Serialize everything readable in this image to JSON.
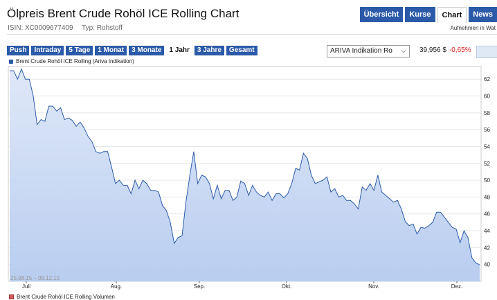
{
  "header": {
    "title": "Ölpreis Brent Crude Rohöl ICE Rolling Chart",
    "isin": "ISIN: XC0009677409",
    "type": "Typ: Rohstoff",
    "watchlist": "Aufnehmen in Wat"
  },
  "nav": {
    "tabs": [
      "Übersicht",
      "Kurse",
      "Chart",
      "News"
    ],
    "active": "Chart"
  },
  "ranges": {
    "items": [
      "Push",
      "Intraday",
      "5 Tage",
      "1 Monat",
      "3 Monate",
      "1 Jahr",
      "3 Jahre",
      "Gesamt"
    ],
    "active": "1 Jahr"
  },
  "source_select": {
    "value": "ARIVA Indikation Ro"
  },
  "quote": {
    "price": "39,956 $",
    "change": "-0,65%"
  },
  "colors": {
    "accent": "#2b5aa8",
    "line": "#2b5aa8",
    "fill": "#b9cdf0",
    "negative": "#d21c1c",
    "volume": "#d35d5d"
  },
  "chart_data": {
    "type": "area",
    "series_label": "Brent Crude Rohöl ICE Rolling (Ariva Indikation)",
    "volume_label": "Brent Crude Rohöl ICE Rolling Volumen",
    "date_range": "25.08.15 – 09.12.15",
    "x_labels": [
      "Juli",
      "Aug.",
      "Sep.",
      "Okt.",
      "Nov.",
      "Dez."
    ],
    "y_ticks": [
      40,
      42,
      44,
      46,
      48,
      50,
      52,
      54,
      56,
      58,
      60,
      62
    ],
    "ylim": [
      38.0,
      63.5
    ],
    "grid": true,
    "values": [
      63.0,
      63.0,
      62.0,
      63.2,
      62.0,
      62.0,
      60.0,
      56.6,
      57.2,
      57.0,
      58.8,
      58.8,
      58.2,
      58.6,
      57.2,
      57.4,
      57.1,
      56.4,
      56.9,
      56.2,
      55.2,
      54.6,
      53.4,
      53.2,
      53.4,
      53.4,
      51.6,
      49.6,
      50.0,
      49.4,
      49.4,
      48.4,
      50.0,
      49.0,
      50.0,
      49.6,
      48.8,
      48.8,
      48.6,
      47.0,
      46.4,
      45.0,
      42.5,
      43.2,
      43.4,
      47.4,
      50.6,
      53.4,
      49.6,
      50.6,
      50.4,
      49.6,
      47.8,
      49.4,
      47.8,
      48.8,
      48.8,
      47.6,
      48.0,
      49.9,
      49.6,
      48.2,
      49.4,
      48.6,
      48.2,
      48.0,
      48.6,
      47.6,
      48.4,
      48.4,
      47.9,
      48.4,
      49.6,
      51.4,
      51.2,
      53.2,
      52.6,
      50.6,
      49.6,
      49.8,
      50.0,
      50.4,
      48.6,
      49.0,
      48.0,
      48.2,
      47.6,
      47.6,
      47.2,
      46.6,
      49.2,
      48.8,
      49.6,
      48.8,
      50.6,
      48.6,
      48.2,
      47.8,
      47.4,
      47.6,
      46.6,
      45.1,
      44.6,
      44.8,
      43.6,
      44.4,
      44.3,
      44.6,
      45.0,
      46.2,
      46.2,
      45.6,
      45.0,
      44.4,
      44.2,
      42.6,
      44.0,
      43.2,
      40.8,
      40.2,
      39.96
    ]
  }
}
